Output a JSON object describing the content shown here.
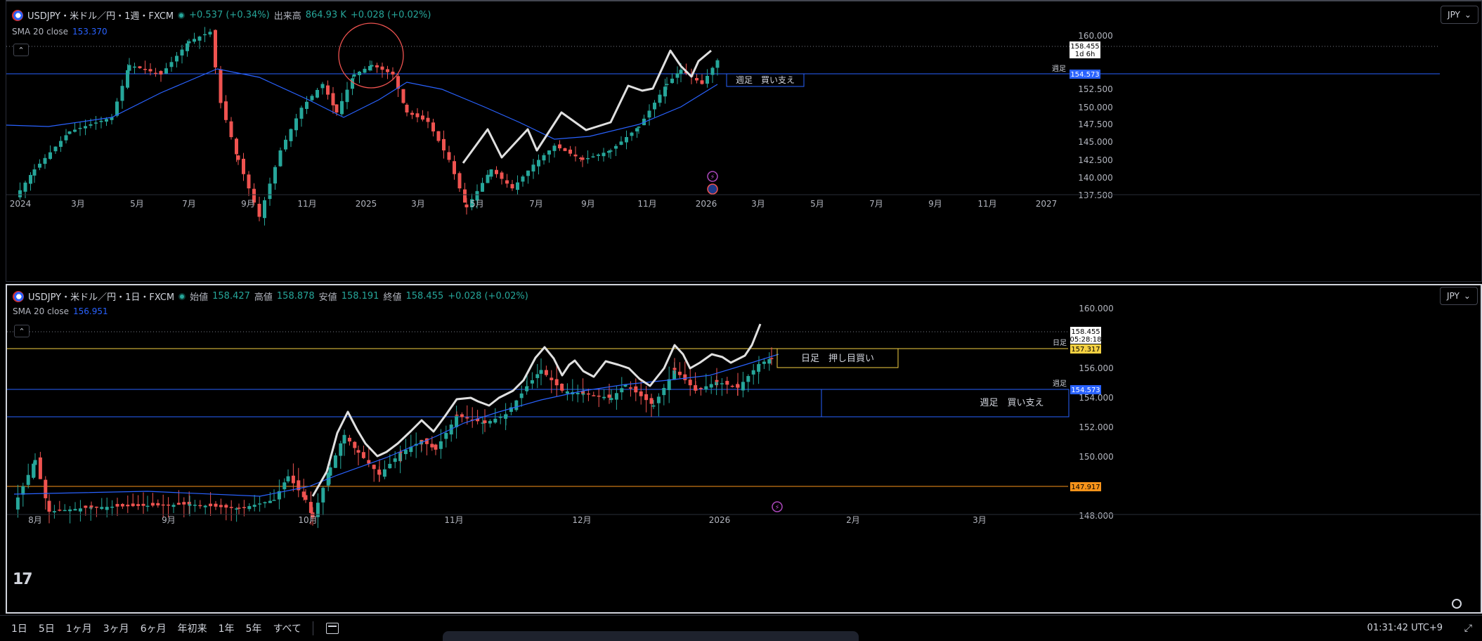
{
  "top_pane": {
    "symbol": "USDJPY・米ドル／円・1週・FXCM",
    "change": "+0.537 (+0.34%)",
    "volume_label": "出来高",
    "volume_value": "864.93 K",
    "volume_change": "+0.028 (+0.02%)",
    "sma_label": "SMA 20 close",
    "sma_value": "153.370",
    "currency_button": "JPY",
    "price_tag": "158.455",
    "countdown": "1d 6h",
    "support_line_label": "週足",
    "support_line_value": "154.573",
    "support_box_text": "週足　買い支え",
    "price_axis": [
      "160.000",
      "152.500",
      "150.000",
      "147.500",
      "145.000",
      "142.500",
      "140.000",
      "137.500"
    ],
    "time_axis": [
      "2024",
      "3月",
      "5月",
      "7月",
      "9月",
      "11月",
      "2025",
      "3月",
      "5月",
      "7月",
      "9月",
      "11月",
      "2026",
      "3月",
      "5月",
      "7月",
      "9月",
      "11月",
      "2027"
    ]
  },
  "bottom_pane": {
    "symbol": "USDJPY・米ドル／円・1日・FXCM",
    "open_label": "始値",
    "open": "158.427",
    "high_label": "高値",
    "high": "158.878",
    "low_label": "安値",
    "low": "158.191",
    "close_label": "終値",
    "close": "158.455",
    "change": "+0.028 (+0.02%)",
    "sma_label": "SMA 20 close",
    "sma_value": "156.951",
    "currency_button": "JPY",
    "price_tag": "158.455",
    "countdown": "05:28:18",
    "daily_line_label": "日足",
    "daily_line_value": "157.317",
    "daily_box_text": "日足　押し目買い",
    "weekly_line_label": "週足",
    "weekly_line_value": "154.573",
    "weekly_box_text": "週足　買い支え",
    "orange_line_value": "147.917",
    "price_axis": [
      "160.000",
      "156.000",
      "154.000",
      "152.000",
      "150.000",
      "148.000"
    ],
    "time_axis": [
      "8月",
      "9月",
      "10月",
      "11月",
      "12月",
      "2026",
      "2月",
      "3月"
    ]
  },
  "bottom_bar": {
    "ranges": [
      "1日",
      "5日",
      "1ヶ月",
      "3ヶ月",
      "6ヶ月",
      "年初来",
      "1年",
      "5年",
      "すべて"
    ],
    "clock": "01:31:42 UTC+9"
  },
  "colors": {
    "up": "#26a69a",
    "down": "#ef5350",
    "sma": "#2962ff",
    "daily_line": "#f5d142",
    "orange_line": "#f7931a",
    "trace": "#e0e0e0"
  }
}
